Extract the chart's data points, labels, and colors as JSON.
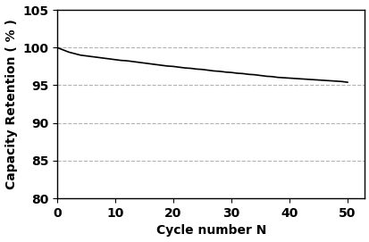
{
  "x": [
    0,
    1,
    2,
    3,
    4,
    5,
    6,
    7,
    8,
    9,
    10,
    11,
    12,
    13,
    14,
    15,
    16,
    17,
    18,
    19,
    20,
    21,
    22,
    23,
    24,
    25,
    26,
    27,
    28,
    29,
    30,
    31,
    32,
    33,
    34,
    35,
    36,
    37,
    38,
    39,
    40,
    41,
    42,
    43,
    44,
    45,
    46,
    47,
    48,
    49,
    50
  ],
  "y": [
    100.0,
    99.7,
    99.4,
    99.2,
    99.0,
    98.9,
    98.8,
    98.7,
    98.6,
    98.5,
    98.4,
    98.3,
    98.25,
    98.15,
    98.05,
    97.95,
    97.85,
    97.75,
    97.65,
    97.55,
    97.5,
    97.4,
    97.3,
    97.25,
    97.15,
    97.1,
    97.0,
    96.9,
    96.85,
    96.75,
    96.7,
    96.6,
    96.55,
    96.45,
    96.4,
    96.3,
    96.2,
    96.15,
    96.05,
    96.0,
    95.95,
    95.9,
    95.85,
    95.8,
    95.75,
    95.7,
    95.65,
    95.6,
    95.55,
    95.5,
    95.4
  ],
  "line_color": "#000000",
  "line_width": 1.2,
  "xlabel": "Cycle number N",
  "ylabel": "Capacity Retention（%）",
  "ylabel_display": "Capacity Retention ( % )",
  "xlim": [
    0,
    53
  ],
  "ylim": [
    80,
    105
  ],
  "xticks": [
    0,
    10,
    20,
    30,
    40,
    50
  ],
  "yticks": [
    80,
    85,
    90,
    95,
    100,
    105
  ],
  "grid_yticks": [
    85,
    90,
    95,
    100
  ],
  "grid_color": "#aaaaaa",
  "grid_style": "--",
  "grid_alpha": 0.9,
  "background_color": "#ffffff",
  "font_size": 10,
  "label_font_size": 10
}
